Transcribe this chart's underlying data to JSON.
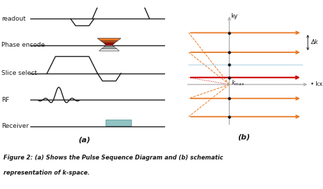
{
  "bg_color": "#ffffff",
  "fig_width": 4.68,
  "fig_height": 2.75,
  "caption_line1": "Figure 2: (a) Shows the Pulse Sequence Diagram and (b) schematic",
  "caption_line2": "representation of k-space.",
  "label_a": "(a)",
  "label_b": "(b)",
  "black": "#1a1a1a",
  "orange": "#E87722",
  "red": "#CC0000",
  "lightblue": "#b8d8e8",
  "gray": "#aaaaaa",
  "teal": "#7fb8b8"
}
